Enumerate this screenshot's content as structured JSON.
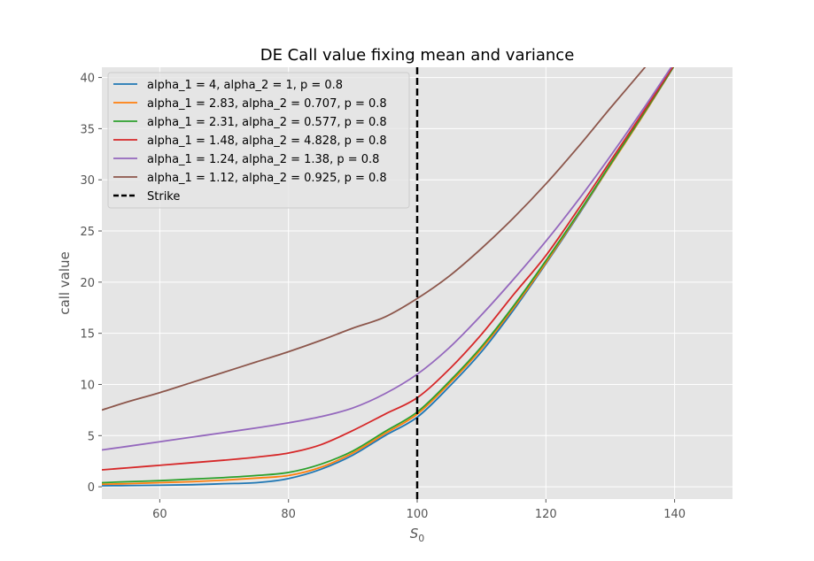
{
  "chart_data": {
    "type": "line",
    "title": "DE Call value fixing mean and variance",
    "xlabel_main": "S",
    "xlabel_sub": "0",
    "ylabel": "call value",
    "xlim": [
      51,
      149
    ],
    "ylim": [
      -1.2,
      41
    ],
    "xticks": [
      60,
      80,
      100,
      120,
      140
    ],
    "yticks": [
      0,
      5,
      10,
      15,
      20,
      25,
      30,
      35,
      40
    ],
    "grid": true,
    "legend_position": "top-left",
    "strike": {
      "name": "Strike",
      "x": 100,
      "color": "#000000"
    },
    "x": [
      51,
      55,
      60,
      65,
      70,
      75,
      80,
      85,
      90,
      95,
      100,
      105,
      110,
      115,
      120,
      125,
      130,
      135,
      140
    ],
    "series": [
      {
        "name": "alpha_1 = 4, alpha_2 = 1, p = 0.8",
        "color": "#1f77b4",
        "values": [
          0.1,
          0.12,
          0.15,
          0.2,
          0.3,
          0.4,
          0.8,
          1.7,
          3.1,
          5.0,
          6.8,
          9.8,
          13.2,
          17.3,
          21.8,
          26.5,
          31.4,
          36.2,
          41.2
        ]
      },
      {
        "name": "alpha_1 = 2.83, alpha_2 = 0.707, p = 0.8",
        "color": "#ff7f0e",
        "values": [
          0.25,
          0.3,
          0.4,
          0.5,
          0.65,
          0.85,
          1.1,
          1.9,
          3.3,
          5.2,
          7.1,
          10.1,
          13.5,
          17.5,
          21.9,
          26.6,
          31.4,
          36.2,
          41.2
        ]
      },
      {
        "name": "alpha_1 = 2.31, alpha_2 = 0.577, p = 0.8",
        "color": "#2ca02c",
        "values": [
          0.4,
          0.5,
          0.6,
          0.75,
          0.9,
          1.1,
          1.4,
          2.2,
          3.5,
          5.4,
          7.3,
          10.3,
          13.7,
          17.7,
          22.1,
          26.7,
          31.5,
          36.3,
          41.2
        ]
      },
      {
        "name": "alpha_1 = 1.48, alpha_2 = 4.828, p = 0.8",
        "color": "#d62728",
        "values": [
          1.65,
          1.85,
          2.1,
          2.35,
          2.6,
          2.9,
          3.3,
          4.1,
          5.5,
          7.1,
          8.7,
          11.5,
          14.9,
          18.8,
          22.6,
          27.1,
          31.8,
          36.5,
          41.3
        ]
      },
      {
        "name": "alpha_1 = 1.24, alpha_2 = 1.38, p = 0.8",
        "color": "#9467bd",
        "values": [
          3.6,
          3.95,
          4.4,
          4.85,
          5.3,
          5.75,
          6.25,
          6.85,
          7.7,
          9.1,
          11.0,
          13.6,
          16.8,
          20.3,
          24.0,
          28.0,
          32.3,
          36.8,
          41.5
        ]
      },
      {
        "name": "alpha_1 = 1.12, alpha_2 = 0.925, p = 0.8",
        "color": "#8c564b",
        "values": [
          7.5,
          8.3,
          9.2,
          10.2,
          11.2,
          12.2,
          13.2,
          14.3,
          15.5,
          16.6,
          18.4,
          20.6,
          23.3,
          26.3,
          29.6,
          33.2,
          37.0,
          40.7,
          44.5
        ]
      }
    ]
  }
}
